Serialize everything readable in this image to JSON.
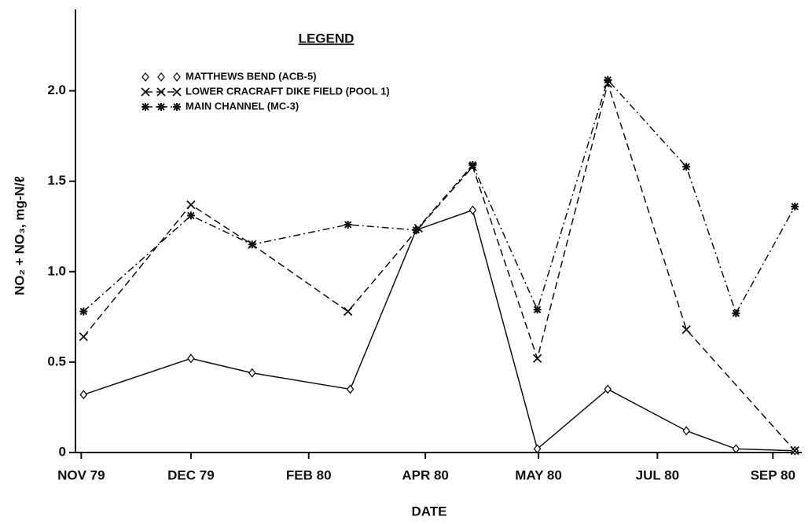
{
  "chart_data": {
    "type": "line",
    "legend_title": "LEGEND",
    "x_label": "DATE",
    "y_label": "NO₂ + NO₃, mg-N/ℓ",
    "xlim": [
      -0.05,
      6.24
    ],
    "ylim": [
      0,
      2.45
    ],
    "xticks": [
      {
        "value": 0,
        "label": "NOV 79"
      },
      {
        "value": 0.95,
        "label": "DEC 79"
      },
      {
        "value": 1.97,
        "label": "FEB 80"
      },
      {
        "value": 2.98,
        "label": "APR 80"
      },
      {
        "value": 3.96,
        "label": "MAY 80"
      },
      {
        "value": 4.99,
        "label": "JUL 80"
      },
      {
        "value": 5.99,
        "label": "SEP 80"
      }
    ],
    "yticks": [
      0,
      0.5,
      {
        "value": 1,
        "label": "1.0"
      },
      1.5,
      {
        "value": 2,
        "label": "2.0"
      }
    ],
    "series": [
      {
        "name": "MATTHEWS BEND (ACB-5)",
        "color": "#111111",
        "marker": "diamond",
        "dash": "solid",
        "x": [
          0.02,
          0.95,
          1.48,
          2.33,
          2.9,
          3.39,
          3.95,
          4.56,
          5.24,
          5.67,
          6.18
        ],
        "values": [
          0.32,
          0.52,
          0.44,
          0.35,
          1.23,
          1.34,
          0.02,
          0.35,
          0.12,
          0.02,
          0.01
        ]
      },
      {
        "name": "LOWER CRACRAFT DIKE FIELD (POOL 1)",
        "color": "#111111",
        "marker": "x",
        "dash": "dashed",
        "x": [
          0.02,
          0.95,
          1.48,
          2.31,
          2.92,
          3.39,
          3.95,
          4.56,
          5.24,
          6.18
        ],
        "values": [
          0.64,
          1.37,
          1.15,
          0.78,
          1.24,
          1.58,
          0.52,
          2.04,
          0.68,
          0.01
        ]
      },
      {
        "name": "MAIN CHANNEL (MC-3)",
        "color": "#111111",
        "marker": "star",
        "dash": "dashdot",
        "x": [
          0.02,
          0.95,
          1.48,
          2.31,
          2.9,
          3.39,
          3.95,
          4.56,
          5.24,
          5.67,
          6.18
        ],
        "values": [
          0.78,
          1.31,
          1.15,
          1.26,
          1.23,
          1.59,
          0.79,
          2.06,
          1.58,
          0.77,
          1.36
        ]
      }
    ]
  }
}
